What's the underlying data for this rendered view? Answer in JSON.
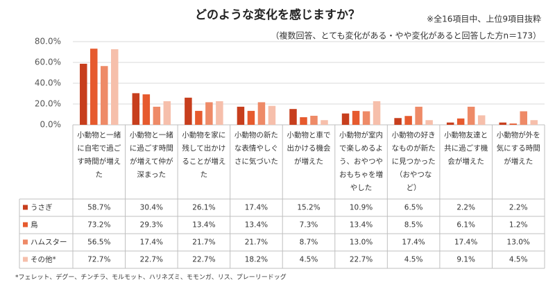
{
  "chart_data": {
    "type": "bar",
    "title": "どのような変化を感じますか？",
    "notes": [
      "※全16項目中、上位9項目抜粋",
      "（複数回答、とても変化がある・やや変化があると回答した方n＝173）"
    ],
    "footnote": "*フェレット、デグー、チンチラ、モルモット、ハリネズミ、モモンガ、リス、プレーリードッグ",
    "categories": [
      "小動物と一緒に自宅で過ごす時間が増えた",
      "小動物と一緒に過ごす時間が増えて仲が深まった",
      "小動物を家に残して出かけることが増えた",
      "小動物の新たな表情やしぐさに気づいた",
      "小動物と車で出かける機会が増えた",
      "小動物が室内で楽しめるよう、おやつやおもちゃを増やした",
      "小動物の好きなものが新たに見つかった（おやつなど）",
      "小動物友達と共に過ごす機会が増えた",
      "小動物が外を気にする時間が増えた"
    ],
    "series": [
      {
        "name": "うさぎ",
        "color": "#c73e1d",
        "values": [
          58.7,
          30.4,
          26.1,
          17.4,
          15.2,
          10.9,
          6.5,
          2.2,
          2.2
        ],
        "value_labels": [
          "58.7%",
          "30.4%",
          "26.1%",
          "17.4%",
          "15.2%",
          "10.9%",
          "6.5%",
          "2.2%",
          "2.2%"
        ]
      },
      {
        "name": "鳥",
        "color": "#e65a2e",
        "values": [
          73.2,
          29.3,
          13.4,
          13.4,
          7.3,
          13.4,
          8.5,
          6.1,
          1.2
        ],
        "value_labels": [
          "73.2%",
          "29.3%",
          "13.4%",
          "13.4%",
          "7.3%",
          "13.4%",
          "8.5%",
          "6.1%",
          "1.2%"
        ]
      },
      {
        "name": "ハムスター",
        "color": "#ee8a67",
        "values": [
          56.5,
          17.4,
          21.7,
          21.7,
          8.7,
          13.0,
          17.4,
          17.4,
          13.0
        ],
        "value_labels": [
          "56.5%",
          "17.4%",
          "21.7%",
          "21.7%",
          "8.7%",
          "13.0%",
          "17.4%",
          "17.4%",
          "13.0%"
        ]
      },
      {
        "name": "その他*",
        "color": "#f6bfab",
        "values": [
          72.7,
          22.7,
          22.7,
          18.2,
          4.5,
          22.7,
          4.5,
          9.1,
          4.5
        ],
        "value_labels": [
          "72.7%",
          "22.7%",
          "22.7%",
          "18.2%",
          "4.5%",
          "22.7%",
          "4.5%",
          "9.1%",
          "4.5%"
        ]
      }
    ],
    "ylim": [
      0,
      80
    ],
    "yticks": [
      {
        "value": 0,
        "label": "0.0%"
      },
      {
        "value": 20,
        "label": "20.0%"
      },
      {
        "value": 40,
        "label": "40.0%"
      },
      {
        "value": 60,
        "label": "60.0%"
      },
      {
        "value": 80,
        "label": "80.0%"
      }
    ],
    "grid": true
  }
}
